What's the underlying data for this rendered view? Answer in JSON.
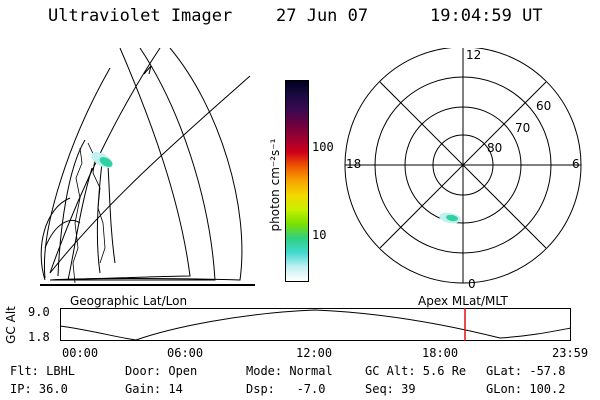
{
  "header": {
    "instrument": "Ultraviolet Imager",
    "date": "27 Jun 07",
    "time": "19:04:59 UT"
  },
  "colorbar": {
    "unit_label": "photon cm⁻²s⁻¹",
    "ticks": [
      "100",
      "10"
    ],
    "colors": [
      "#000020",
      "#1a0a40",
      "#3a0a50",
      "#6a0040",
      "#9a0030",
      "#d00018",
      "#f05a00",
      "#f7a400",
      "#f4d800",
      "#c8f000",
      "#7ae000",
      "#30d080",
      "#40d8d0",
      "#c0f0f0",
      "#ffffff"
    ]
  },
  "polar_plot": {
    "mlt_labels": {
      "top": "12",
      "left": "18",
      "right": "6",
      "bottom": "0"
    },
    "lat_labels": [
      "60",
      "70",
      "80"
    ]
  },
  "map_labels": {
    "left": "Geographic Lat/Lon",
    "right": "Apex MLat/MLT"
  },
  "altitude_plot": {
    "axis_title": "GC Alt",
    "y_ticks": [
      "9.0",
      "1.8"
    ],
    "x_ticks": [
      "00:00",
      "06:00",
      "12:00",
      "18:00",
      "23:59"
    ],
    "current_marker_color": "#e01010"
  },
  "info": {
    "filter": "Flt: LBHL",
    "door": "Door: Open",
    "mode": "Mode: Normal",
    "gc_alt": "GC Alt: 5.6 Re",
    "glat": "GLat: -57.8",
    "ip": "IP: 36.0",
    "gain": "Gain: 14",
    "dsp": "Dsp:   -7.0",
    "seq": "Seq: 39",
    "glon": "GLon: 100.2"
  }
}
